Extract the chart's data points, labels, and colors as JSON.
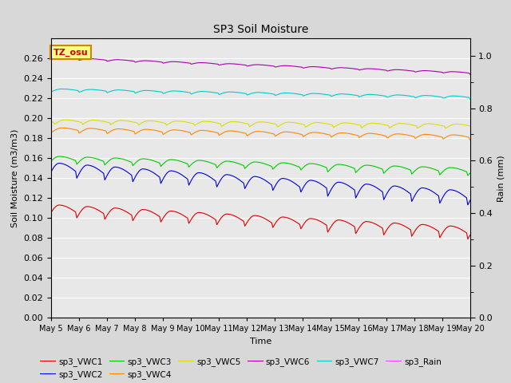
{
  "title": "SP3 Soil Moisture",
  "xlabel": "Time",
  "ylabel_left": "Soil Moisture (m3/m3)",
  "ylabel_right": "Rain (mm)",
  "ylim_left": [
    0.0,
    0.28
  ],
  "ylim_right": [
    0.0,
    1.0667
  ],
  "x_tick_labels": [
    "May 5",
    "May 6",
    "May 7",
    "May 8",
    "May 9",
    "May 10",
    "May 11",
    "May 12",
    "May 13",
    "May 14",
    "May 15",
    "May 16",
    "May 17",
    "May 18",
    "May 19",
    "May 20"
  ],
  "yticks_left": [
    0.0,
    0.02,
    0.04,
    0.06,
    0.08,
    0.1,
    0.12,
    0.14,
    0.16,
    0.18,
    0.2,
    0.22,
    0.24,
    0.26
  ],
  "yticks_right_major": [
    0.0,
    0.2,
    0.4,
    0.6,
    0.8,
    1.0
  ],
  "colors": {
    "sp3_VWC1": "#dd0000",
    "sp3_VWC2": "#0000dd",
    "sp3_VWC3": "#00cc00",
    "sp3_VWC4": "#ff8800",
    "sp3_VWC5": "#dddd00",
    "sp3_VWC6": "#aa00aa",
    "sp3_VWC7": "#00cccc",
    "sp3_Rain": "#ff44ff"
  },
  "bg_color": "#d8d8d8",
  "plot_bg_color": "#e8e8e8",
  "annotation_text": "TZ_osu",
  "annotation_bg": "#ffff88",
  "annotation_border": "#cc8800"
}
